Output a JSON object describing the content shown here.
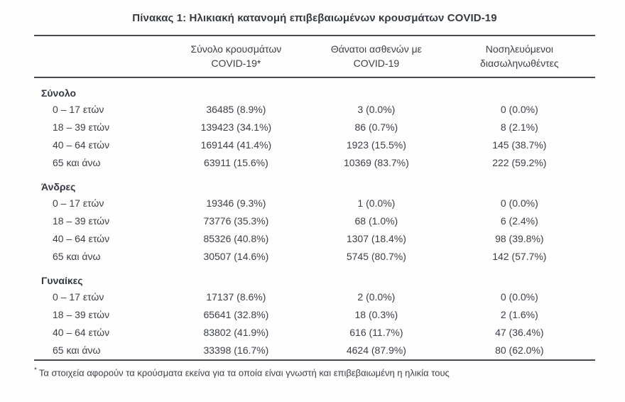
{
  "page": {
    "title": "Πίνακας 1: Ηλικιακή κατανομή επιβεβαιωμένων κρουσμάτων COVID-19"
  },
  "table": {
    "col_headers": {
      "cases": {
        "line1": "Σύνολο κρουσμάτων",
        "line2": "COVID-19*"
      },
      "deaths": {
        "line1": "Θάνατοι ασθενών με",
        "line2": "COVID-19"
      },
      "intubated": {
        "line1": "Νοσηλευόμενοι",
        "line2": "διασωληνωθέντες"
      }
    },
    "groups": [
      {
        "label": "Σύνολο",
        "rows": [
          {
            "age": "0 – 17 ετών",
            "cases": "36485 (8.9%)",
            "deaths": "3 (0.0%)",
            "intubated": "0 (0.0%)"
          },
          {
            "age": "18 – 39 ετών",
            "cases": "139423 (34.1%)",
            "deaths": "86 (0.7%)",
            "intubated": "8 (2.1%)"
          },
          {
            "age": "40 – 64 ετών",
            "cases": "169144 (41.4%)",
            "deaths": "1923 (15.5%)",
            "intubated": "145 (38.7%)"
          },
          {
            "age": "65 και άνω",
            "cases": "63911 (15.6%)",
            "deaths": "10369 (83.7%)",
            "intubated": "222 (59.2%)"
          }
        ]
      },
      {
        "label": "Άνδρες",
        "rows": [
          {
            "age": "0 – 17 ετών",
            "cases": "19346 (9.3%)",
            "deaths": "1 (0.0%)",
            "intubated": "0 (0.0%)"
          },
          {
            "age": "18 – 39 ετών",
            "cases": "73776 (35.3%)",
            "deaths": "68 (1.0%)",
            "intubated": "6 (2.4%)"
          },
          {
            "age": "40 – 64 ετών",
            "cases": "85326 (40.8%)",
            "deaths": "1307 (18.4%)",
            "intubated": "98 (39.8%)"
          },
          {
            "age": "65 και άνω",
            "cases": "30507 (14.6%)",
            "deaths": "5745 (80.7%)",
            "intubated": "142 (57.7%)"
          }
        ]
      },
      {
        "label": "Γυναίκες",
        "rows": [
          {
            "age": "0 – 17 ετών",
            "cases": "17137 (8.6%)",
            "deaths": "2 (0.0%)",
            "intubated": "0 (0.0%)"
          },
          {
            "age": "18 – 39 ετών",
            "cases": "65641 (32.8%)",
            "deaths": "18 (0.3%)",
            "intubated": "2 (1.6%)"
          },
          {
            "age": "40 – 64 ετών",
            "cases": "83802 (41.9%)",
            "deaths": "616 (11.7%)",
            "intubated": "47 (36.4%)"
          },
          {
            "age": "65 και άνω",
            "cases": "33398 (16.7%)",
            "deaths": "4624 (87.9%)",
            "intubated": "80 (62.0%)"
          }
        ]
      }
    ]
  },
  "footnote": {
    "marker": "*",
    "text": "Τα στοιχεία αφορούν τα κρούσματα εκείνα για τα οποία είναι γνωστή και επιβεβαιωμένη η ηλικία τους"
  }
}
